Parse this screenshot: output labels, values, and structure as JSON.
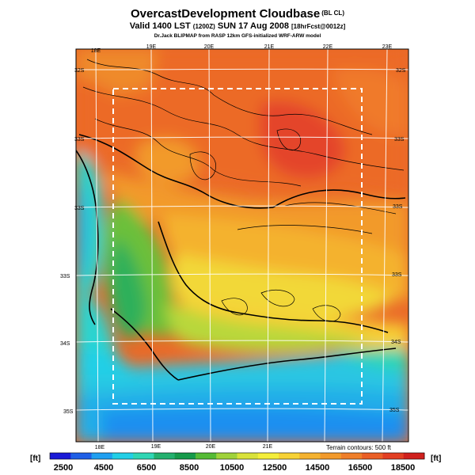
{
  "header": {
    "title": "OvercastDevelopment Cloudbase",
    "title_suffix": "(BL CL)",
    "valid_a": "Valid 1400 LST",
    "valid_b": "(1200Z)",
    "valid_c": "SUN 17 Aug 2008",
    "valid_d": "[18hrFcst@0012z]",
    "credit": "Dr.Jack BLIPMAP from RASP 12km GFS-initialized WRF-ARW model"
  },
  "map": {
    "lon_labels": [
      "18E",
      "19E",
      "20E",
      "21E",
      "22E",
      "23E"
    ],
    "lat_labels": [
      "32S",
      "33S",
      "33S",
      "33S",
      "33S",
      "34S",
      "35S"
    ],
    "lat_labels_left": [
      "32S",
      "33S",
      "33S",
      "33S",
      "34S",
      "35S"
    ],
    "lat_labels_right": [
      "32S",
      "33S",
      "33S",
      "33S",
      "34S",
      "35S"
    ],
    "terrain_note": "Terrain contours: 500 ft"
  },
  "colorbar": {
    "unit": "[ft]",
    "tick_labels": [
      "2500",
      "4500",
      "6500",
      "8500",
      "10500",
      "12500",
      "14500",
      "16500",
      "18500"
    ],
    "colors": [
      "#1a1ad6",
      "#1f5fe6",
      "#1f9ff0",
      "#22cfe6",
      "#2fd6b4",
      "#23b06e",
      "#169a4a",
      "#55bb35",
      "#9fd23a",
      "#d8e23a",
      "#f4ee3a",
      "#f7d235",
      "#f4b22f",
      "#f29a2c",
      "#ef7f2a",
      "#ea5f26",
      "#e23f22",
      "#d0201d"
    ]
  }
}
